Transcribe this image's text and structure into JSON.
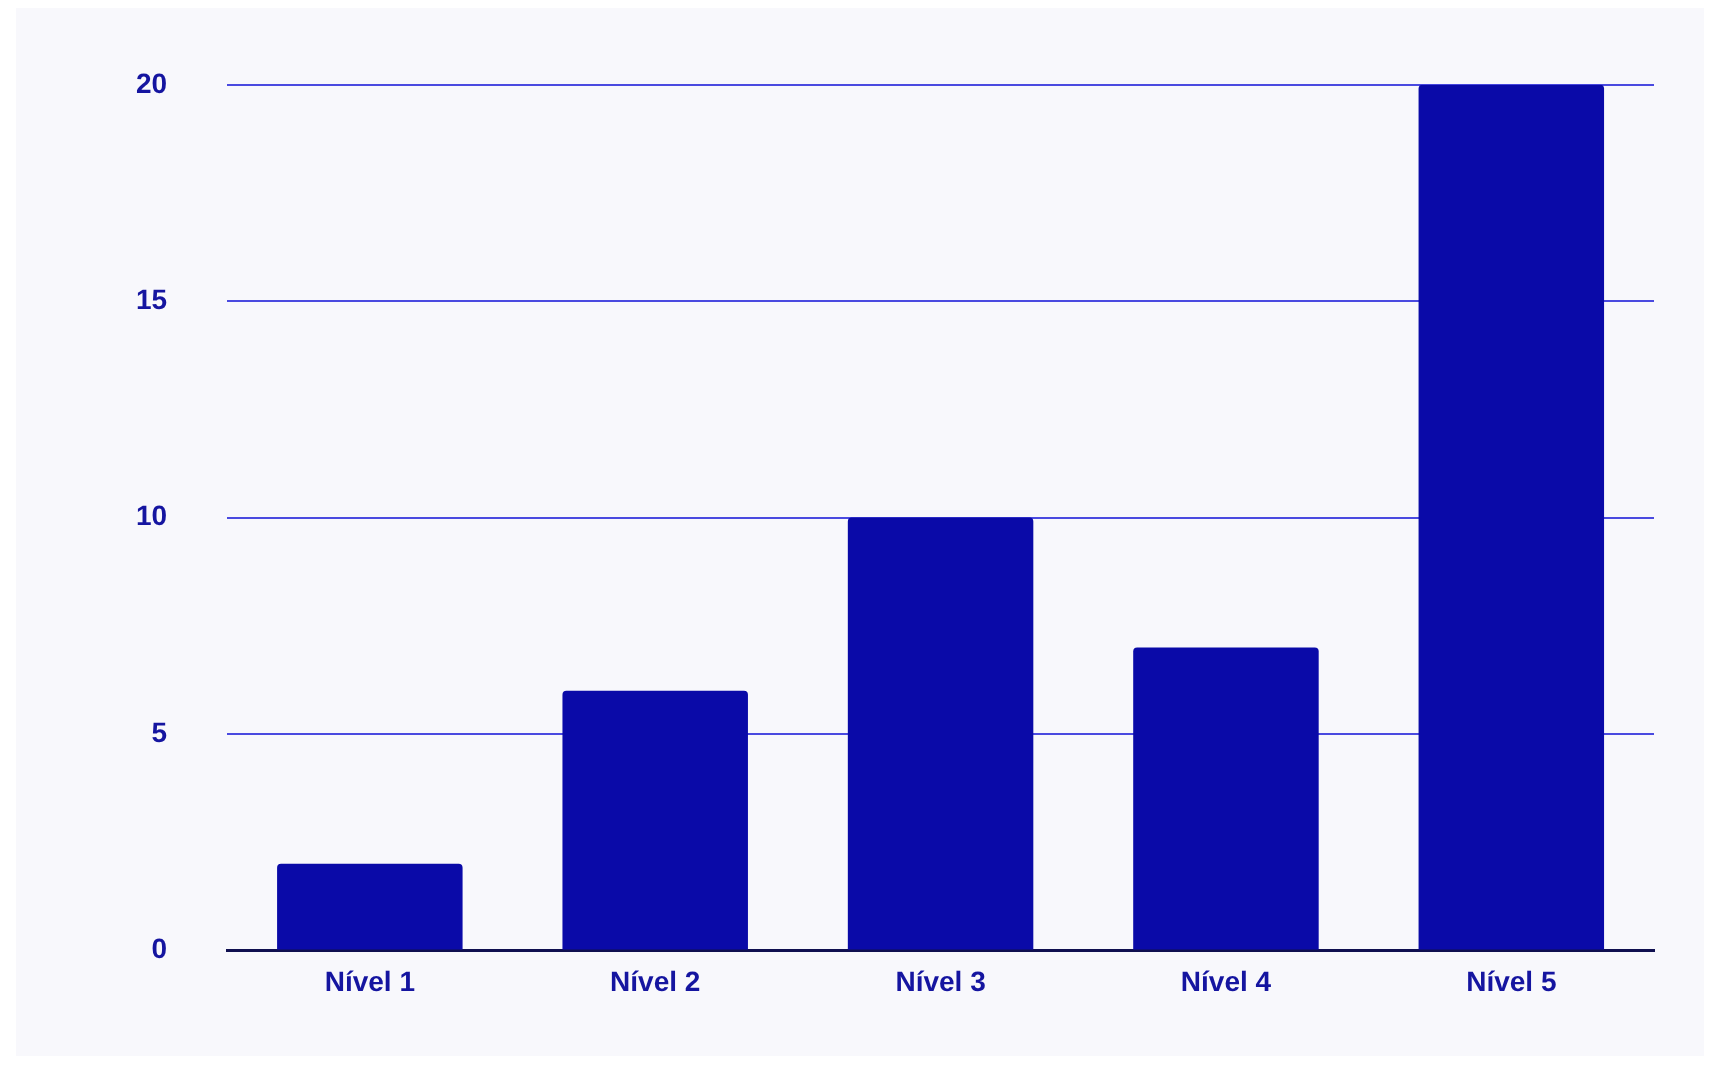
{
  "chart_data": {
    "type": "bar",
    "categories": [
      "Nível 1",
      "Nível 2",
      "Nível 3",
      "Nível 4",
      "Nível 5"
    ],
    "values": [
      2,
      6,
      10,
      7,
      20
    ],
    "color": "#0a0aa8",
    "ylim": [
      0,
      20
    ],
    "yticks": [
      0,
      5,
      10,
      15,
      20
    ],
    "grid": "y"
  }
}
